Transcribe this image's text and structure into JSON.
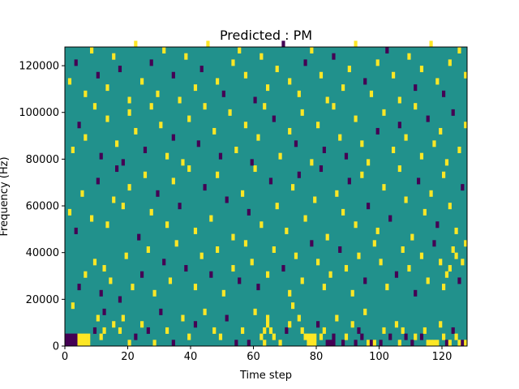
{
  "chart_data": {
    "type": "heatmap",
    "title": "Predicted : PM",
    "xlabel": "Time step",
    "ylabel": "Frequency (Hz)",
    "xlim": [
      0,
      128
    ],
    "ylim": [
      0,
      128000
    ],
    "xticks": [
      0,
      20,
      40,
      60,
      80,
      100,
      120
    ],
    "yticks": [
      0,
      20000,
      40000,
      60000,
      80000,
      100000,
      120000
    ],
    "xtick_labels": [
      "0",
      "20",
      "40",
      "60",
      "80",
      "100",
      "120"
    ],
    "ytick_labels": [
      "0",
      "20000",
      "40000",
      "60000",
      "80000",
      "100000",
      "120000"
    ],
    "colormap": "viridis",
    "value_colors": {
      "-1": "#440154",
      "0": "#21918c",
      "1": "#fde725"
    },
    "background_value": 0,
    "grid": false,
    "cells": [
      [
        0,
        0,
        -1
      ],
      [
        0,
        1,
        -1
      ],
      [
        1,
        0,
        -1
      ],
      [
        1,
        1,
        -1
      ],
      [
        2,
        0,
        -1
      ],
      [
        2,
        1,
        -1
      ],
      [
        3,
        0,
        -1
      ],
      [
        3,
        1,
        -1
      ],
      [
        4,
        0,
        1
      ],
      [
        4,
        1,
        1
      ],
      [
        5,
        0,
        1
      ],
      [
        5,
        1,
        1
      ],
      [
        6,
        0,
        1
      ],
      [
        6,
        1,
        1
      ],
      [
        7,
        0,
        1
      ],
      [
        7,
        1,
        1
      ],
      [
        9,
        2,
        -1
      ],
      [
        11,
        1,
        1
      ],
      [
        12,
        2,
        1
      ],
      [
        10,
        4,
        1
      ],
      [
        12,
        5,
        -1
      ],
      [
        15,
        3,
        1
      ],
      [
        17,
        2,
        1
      ],
      [
        18,
        4,
        1
      ],
      [
        20,
        0,
        1
      ],
      [
        22,
        1,
        -1
      ],
      [
        24,
        3,
        1
      ],
      [
        26,
        2,
        -1
      ],
      [
        28,
        0,
        1
      ],
      [
        30,
        5,
        -1
      ],
      [
        32,
        2,
        1
      ],
      [
        34,
        0,
        -1
      ],
      [
        37,
        4,
        1
      ],
      [
        39,
        1,
        1
      ],
      [
        41,
        3,
        -1
      ],
      [
        44,
        5,
        1
      ],
      [
        47,
        2,
        1
      ],
      [
        49,
        1,
        1
      ],
      [
        51,
        4,
        -1
      ],
      [
        54,
        0,
        -1
      ],
      [
        56,
        2,
        1
      ],
      [
        58,
        0,
        -1
      ],
      [
        60,
        5,
        1
      ],
      [
        62,
        1,
        1
      ],
      [
        63,
        2,
        1
      ],
      [
        63,
        0,
        1
      ],
      [
        64,
        3,
        1
      ],
      [
        64,
        4,
        1
      ],
      [
        65,
        2,
        1
      ],
      [
        66,
        1,
        1
      ],
      [
        68,
        0,
        1
      ],
      [
        70,
        2,
        -1
      ],
      [
        71,
        3,
        1
      ],
      [
        72,
        6,
        1
      ],
      [
        74,
        4,
        1
      ],
      [
        75,
        2,
        1
      ],
      [
        77,
        0,
        1
      ],
      [
        77,
        1,
        1
      ],
      [
        76,
        1,
        1
      ],
      [
        78,
        0,
        1
      ],
      [
        78,
        1,
        1
      ],
      [
        79,
        0,
        1
      ],
      [
        79,
        1,
        1
      ],
      [
        80,
        3,
        -1
      ],
      [
        81,
        1,
        1
      ],
      [
        82,
        2,
        1
      ],
      [
        83,
        0,
        -1
      ],
      [
        84,
        0,
        -1
      ],
      [
        85,
        0,
        -1
      ],
      [
        85,
        1,
        -1
      ],
      [
        86,
        4,
        1
      ],
      [
        88,
        0,
        -1
      ],
      [
        89,
        1,
        1
      ],
      [
        91,
        3,
        1
      ],
      [
        92,
        0,
        -1
      ],
      [
        93,
        2,
        -1
      ],
      [
        94,
        1,
        -1
      ],
      [
        95,
        5,
        1
      ],
      [
        96,
        0,
        1
      ],
      [
        97,
        0,
        -1
      ],
      [
        98,
        0,
        1
      ],
      [
        100,
        0,
        -1
      ],
      [
        101,
        2,
        1
      ],
      [
        103,
        1,
        -1
      ],
      [
        105,
        3,
        1
      ],
      [
        106,
        0,
        1
      ],
      [
        107,
        2,
        1
      ],
      [
        108,
        1,
        -1
      ],
      [
        110,
        0,
        -1
      ],
      [
        111,
        1,
        1
      ],
      [
        113,
        1,
        -1
      ],
      [
        114,
        2,
        1
      ],
      [
        115,
        0,
        1
      ],
      [
        116,
        0,
        1
      ],
      [
        117,
        0,
        1
      ],
      [
        118,
        0,
        1
      ],
      [
        119,
        3,
        1
      ],
      [
        120,
        1,
        1
      ],
      [
        121,
        0,
        -1
      ],
      [
        122,
        0,
        1
      ],
      [
        123,
        2,
        -1
      ],
      [
        124,
        1,
        1
      ],
      [
        125,
        0,
        1
      ],
      [
        126,
        0,
        -1
      ],
      [
        127,
        0,
        1
      ],
      [
        2,
        6,
        1
      ],
      [
        4,
        9,
        -1
      ],
      [
        6,
        11,
        1
      ],
      [
        9,
        13,
        1
      ],
      [
        11,
        8,
        -1
      ],
      [
        12,
        12,
        1
      ],
      [
        14,
        10,
        1
      ],
      [
        17,
        7,
        -1
      ],
      [
        19,
        14,
        1
      ],
      [
        21,
        9,
        1
      ],
      [
        24,
        11,
        -1
      ],
      [
        26,
        15,
        1
      ],
      [
        28,
        8,
        1
      ],
      [
        31,
        13,
        -1
      ],
      [
        33,
        10,
        1
      ],
      [
        35,
        16,
        1
      ],
      [
        38,
        12,
        -1
      ],
      [
        41,
        9,
        1
      ],
      [
        43,
        14,
        1
      ],
      [
        46,
        11,
        -1
      ],
      [
        48,
        15,
        1
      ],
      [
        50,
        8,
        1
      ],
      [
        53,
        12,
        1
      ],
      [
        55,
        10,
        -1
      ],
      [
        57,
        16,
        1
      ],
      [
        59,
        13,
        1
      ],
      [
        61,
        9,
        -1
      ],
      [
        64,
        11,
        1
      ],
      [
        66,
        15,
        1
      ],
      [
        69,
        12,
        -1
      ],
      [
        71,
        8,
        1
      ],
      [
        73,
        14,
        1
      ],
      [
        75,
        10,
        1
      ],
      [
        78,
        16,
        -1
      ],
      [
        80,
        13,
        1
      ],
      [
        82,
        9,
        1
      ],
      [
        84,
        11,
        1
      ],
      [
        87,
        15,
        -1
      ],
      [
        89,
        12,
        1
      ],
      [
        91,
        8,
        1
      ],
      [
        93,
        14,
        1
      ],
      [
        95,
        10,
        -1
      ],
      [
        98,
        16,
        1
      ],
      [
        100,
        13,
        1
      ],
      [
        102,
        9,
        1
      ],
      [
        105,
        11,
        -1
      ],
      [
        107,
        15,
        1
      ],
      [
        109,
        12,
        1
      ],
      [
        111,
        8,
        -1
      ],
      [
        113,
        14,
        1
      ],
      [
        115,
        10,
        1
      ],
      [
        117,
        16,
        -1
      ],
      [
        119,
        13,
        1
      ],
      [
        120,
        9,
        1
      ],
      [
        121,
        11,
        1
      ],
      [
        122,
        12,
        1
      ],
      [
        123,
        15,
        1
      ],
      [
        124,
        14,
        1
      ],
      [
        125,
        10,
        -1
      ],
      [
        126,
        13,
        1
      ],
      [
        127,
        16,
        1
      ],
      [
        1,
        21,
        1
      ],
      [
        3,
        18,
        -1
      ],
      [
        5,
        24,
        1
      ],
      [
        8,
        20,
        1
      ],
      [
        10,
        26,
        -1
      ],
      [
        13,
        19,
        1
      ],
      [
        15,
        23,
        1
      ],
      [
        16,
        28,
        -1
      ],
      [
        18,
        22,
        1
      ],
      [
        20,
        25,
        1
      ],
      [
        23,
        17,
        -1
      ],
      [
        25,
        27,
        1
      ],
      [
        27,
        21,
        1
      ],
      [
        29,
        24,
        -1
      ],
      [
        32,
        19,
        1
      ],
      [
        34,
        26,
        1
      ],
      [
        36,
        22,
        -1
      ],
      [
        39,
        28,
        1
      ],
      [
        41,
        18,
        1
      ],
      [
        44,
        25,
        -1
      ],
      [
        46,
        20,
        1
      ],
      [
        48,
        27,
        1
      ],
      [
        51,
        23,
        -1
      ],
      [
        53,
        17,
        1
      ],
      [
        56,
        24,
        1
      ],
      [
        58,
        21,
        -1
      ],
      [
        60,
        28,
        1
      ],
      [
        62,
        19,
        1
      ],
      [
        65,
        26,
        -1
      ],
      [
        67,
        22,
        1
      ],
      [
        70,
        18,
        1
      ],
      [
        72,
        25,
        1
      ],
      [
        74,
        27,
        -1
      ],
      [
        76,
        20,
        1
      ],
      [
        79,
        23,
        1
      ],
      [
        81,
        28,
        -1
      ],
      [
        83,
        17,
        1
      ],
      [
        86,
        24,
        1
      ],
      [
        88,
        21,
        1
      ],
      [
        90,
        26,
        -1
      ],
      [
        92,
        19,
        1
      ],
      [
        94,
        27,
        1
      ],
      [
        96,
        22,
        -1
      ],
      [
        99,
        18,
        1
      ],
      [
        101,
        25,
        1
      ],
      [
        103,
        20,
        -1
      ],
      [
        106,
        28,
        1
      ],
      [
        108,
        23,
        1
      ],
      [
        110,
        17,
        1
      ],
      [
        112,
        26,
        -1
      ],
      [
        114,
        21,
        1
      ],
      [
        116,
        24,
        1
      ],
      [
        118,
        19,
        -1
      ],
      [
        120,
        27,
        1
      ],
      [
        122,
        22,
        1
      ],
      [
        124,
        18,
        1
      ],
      [
        126,
        25,
        -1
      ],
      [
        2,
        31,
        1
      ],
      [
        4,
        35,
        -1
      ],
      [
        6,
        33,
        1
      ],
      [
        9,
        38,
        1
      ],
      [
        11,
        30,
        -1
      ],
      [
        13,
        36,
        1
      ],
      [
        16,
        32,
        1
      ],
      [
        18,
        29,
        -1
      ],
      [
        20,
        37,
        1
      ],
      [
        22,
        34,
        1
      ],
      [
        25,
        31,
        -1
      ],
      [
        27,
        38,
        1
      ],
      [
        30,
        35,
        1
      ],
      [
        32,
        30,
        1
      ],
      [
        34,
        33,
        -1
      ],
      [
        37,
        29,
        1
      ],
      [
        39,
        36,
        1
      ],
      [
        42,
        32,
        -1
      ],
      [
        44,
        38,
        1
      ],
      [
        47,
        34,
        1
      ],
      [
        49,
        30,
        -1
      ],
      [
        52,
        37,
        1
      ],
      [
        54,
        31,
        1
      ],
      [
        57,
        35,
        1
      ],
      [
        59,
        29,
        -1
      ],
      [
        61,
        33,
        1
      ],
      [
        63,
        38,
        1
      ],
      [
        66,
        36,
        -1
      ],
      [
        68,
        30,
        1
      ],
      [
        71,
        34,
        1
      ],
      [
        73,
        32,
        -1
      ],
      [
        75,
        37,
        1
      ],
      [
        78,
        29,
        1
      ],
      [
        80,
        35,
        1
      ],
      [
        82,
        31,
        -1
      ],
      [
        85,
        38,
        1
      ],
      [
        87,
        33,
        1
      ],
      [
        89,
        30,
        -1
      ],
      [
        92,
        36,
        1
      ],
      [
        94,
        32,
        1
      ],
      [
        96,
        29,
        1
      ],
      [
        99,
        34,
        -1
      ],
      [
        101,
        37,
        1
      ],
      [
        104,
        31,
        1
      ],
      [
        106,
        35,
        -1
      ],
      [
        108,
        33,
        1
      ],
      [
        111,
        38,
        1
      ],
      [
        113,
        30,
        1
      ],
      [
        115,
        36,
        -1
      ],
      [
        117,
        32,
        1
      ],
      [
        119,
        34,
        1
      ],
      [
        121,
        29,
        1
      ],
      [
        123,
        37,
        -1
      ],
      [
        125,
        31,
        1
      ],
      [
        127,
        35,
        1
      ],
      [
        1,
        42,
        1
      ],
      [
        3,
        45,
        -1
      ],
      [
        6,
        40,
        1
      ],
      [
        8,
        47,
        1
      ],
      [
        10,
        43,
        -1
      ],
      [
        13,
        41,
        1
      ],
      [
        15,
        46,
        1
      ],
      [
        17,
        44,
        -1
      ],
      [
        20,
        39,
        1
      ],
      [
        22,
        48,
        1
      ],
      [
        24,
        42,
        1
      ],
      [
        27,
        45,
        -1
      ],
      [
        29,
        40,
        1
      ],
      [
        31,
        47,
        1
      ],
      [
        34,
        43,
        -1
      ],
      [
        36,
        39,
        1
      ],
      [
        38,
        46,
        1
      ],
      [
        41,
        41,
        1
      ],
      [
        43,
        44,
        -1
      ],
      [
        45,
        48,
        1
      ],
      [
        48,
        42,
        1
      ],
      [
        50,
        40,
        -1
      ],
      [
        53,
        45,
        1
      ],
      [
        55,
        47,
        1
      ],
      [
        57,
        43,
        1
      ],
      [
        60,
        39,
        -1
      ],
      [
        62,
        46,
        1
      ],
      [
        64,
        41,
        1
      ],
      [
        67,
        44,
        1
      ],
      [
        69,
        48,
        -1
      ],
      [
        71,
        42,
        1
      ],
      [
        74,
        40,
        1
      ],
      [
        76,
        45,
        -1
      ],
      [
        78,
        47,
        1
      ],
      [
        81,
        43,
        1
      ],
      [
        83,
        39,
        1
      ],
      [
        85,
        46,
        -1
      ],
      [
        88,
        41,
        1
      ],
      [
        90,
        44,
        1
      ],
      [
        92,
        48,
        1
      ],
      [
        95,
        42,
        -1
      ],
      [
        97,
        40,
        1
      ],
      [
        99,
        45,
        1
      ],
      [
        102,
        47,
        -1
      ],
      [
        104,
        43,
        1
      ],
      [
        106,
        39,
        1
      ],
      [
        109,
        46,
        1
      ],
      [
        111,
        41,
        -1
      ],
      [
        113,
        44,
        1
      ],
      [
        116,
        48,
        1
      ],
      [
        118,
        42,
        1
      ],
      [
        120,
        40,
        -1
      ],
      [
        122,
        45,
        1
      ],
      [
        125,
        47,
        1
      ],
      [
        127,
        43,
        1
      ]
    ]
  }
}
